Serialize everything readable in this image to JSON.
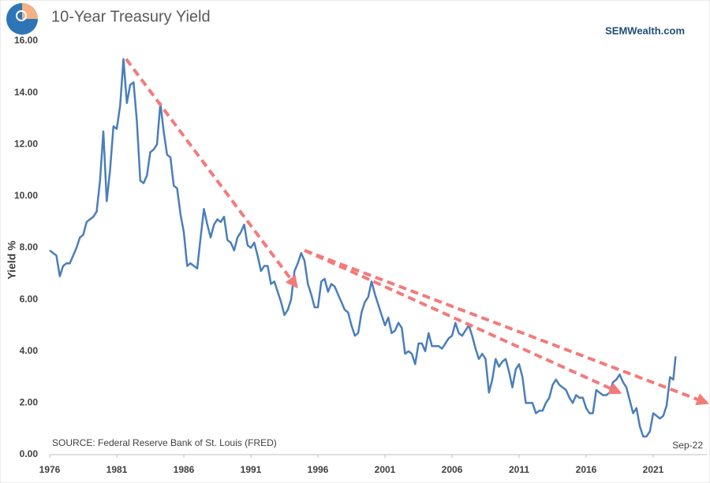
{
  "chart_data": {
    "type": "line",
    "title": "10-Year Treasury Yield",
    "brand": "SEMWealth.com",
    "source": "SOURCE:  Federal Reserve Bank of St. Louis (FRED)",
    "end_label": "Sep-22",
    "y_label": "Yield %",
    "xlim": [
      1976,
      2025
    ],
    "xticks": [
      1976,
      1981,
      1986,
      1991,
      1996,
      2001,
      2006,
      2011,
      2016,
      2021
    ],
    "ylim": [
      0,
      16
    ],
    "yticks": [
      {
        "value": 0,
        "label": "0.00"
      },
      {
        "value": 2,
        "label": "2.00"
      },
      {
        "value": 4,
        "label": "4.00"
      },
      {
        "value": 6,
        "label": "6.00"
      },
      {
        "value": 8,
        "label": "8.00"
      },
      {
        "value": 10,
        "label": "10.00"
      },
      {
        "value": 12,
        "label": "12.00"
      },
      {
        "value": 14,
        "label": "14.00"
      },
      {
        "value": 16,
        "label": "16.00"
      }
    ],
    "grid": false,
    "x": [
      1976,
      1976.25,
      1976.5,
      1976.75,
      1977,
      1977.25,
      1977.5,
      1977.75,
      1978,
      1978.25,
      1978.5,
      1978.75,
      1979,
      1979.25,
      1979.5,
      1979.75,
      1980,
      1980.25,
      1980.5,
      1980.75,
      1981,
      1981.25,
      1981.5,
      1981.75,
      1982,
      1982.25,
      1982.5,
      1982.75,
      1983,
      1983.25,
      1983.5,
      1983.75,
      1984,
      1984.25,
      1984.5,
      1984.75,
      1985,
      1985.25,
      1985.5,
      1985.75,
      1986,
      1986.25,
      1986.5,
      1986.75,
      1987,
      1987.25,
      1987.5,
      1987.75,
      1988,
      1988.25,
      1988.5,
      1988.75,
      1989,
      1989.25,
      1989.5,
      1989.75,
      1990,
      1990.25,
      1990.5,
      1990.75,
      1991,
      1991.25,
      1991.5,
      1991.75,
      1992,
      1992.25,
      1992.5,
      1992.75,
      1993,
      1993.25,
      1993.5,
      1993.75,
      1994,
      1994.25,
      1994.5,
      1994.75,
      1995,
      1995.25,
      1995.5,
      1995.75,
      1996,
      1996.25,
      1996.5,
      1996.75,
      1997,
      1997.25,
      1997.5,
      1997.75,
      1998,
      1998.25,
      1998.5,
      1998.75,
      1999,
      1999.25,
      1999.5,
      1999.75,
      2000,
      2000.25,
      2000.5,
      2000.75,
      2001,
      2001.25,
      2001.5,
      2001.75,
      2002,
      2002.25,
      2002.5,
      2002.75,
      2003,
      2003.25,
      2003.5,
      2003.75,
      2004,
      2004.25,
      2004.5,
      2004.75,
      2005,
      2005.25,
      2005.5,
      2005.75,
      2006,
      2006.25,
      2006.5,
      2006.75,
      2007,
      2007.25,
      2007.5,
      2007.75,
      2008,
      2008.25,
      2008.5,
      2008.75,
      2009,
      2009.25,
      2009.5,
      2009.75,
      2010,
      2010.25,
      2010.5,
      2010.75,
      2011,
      2011.25,
      2011.5,
      2011.75,
      2012,
      2012.25,
      2012.5,
      2012.75,
      2013,
      2013.25,
      2013.5,
      2013.75,
      2014,
      2014.25,
      2014.5,
      2014.75,
      2015,
      2015.25,
      2015.5,
      2015.75,
      2016,
      2016.25,
      2016.5,
      2016.75,
      2017,
      2017.25,
      2017.5,
      2017.75,
      2018,
      2018.25,
      2018.5,
      2018.75,
      2019,
      2019.25,
      2019.5,
      2019.75,
      2020,
      2020.25,
      2020.5,
      2020.75,
      2021,
      2021.25,
      2021.5,
      2021.75,
      2022,
      2022.25,
      2022.5,
      2022.67
    ],
    "series": [
      {
        "color": "#4a7ebb",
        "values": [
          7.9,
          7.8,
          7.7,
          6.9,
          7.3,
          7.4,
          7.4,
          7.7,
          8.0,
          8.4,
          8.5,
          9.0,
          9.1,
          9.2,
          9.4,
          10.6,
          12.5,
          9.8,
          11.0,
          12.7,
          12.6,
          13.5,
          15.3,
          13.6,
          14.3,
          14.4,
          12.9,
          10.6,
          10.5,
          10.8,
          11.7,
          11.8,
          12.0,
          13.6,
          12.5,
          11.6,
          11.5,
          10.4,
          10.3,
          9.3,
          8.6,
          7.3,
          7.4,
          7.3,
          7.2,
          8.4,
          9.5,
          8.9,
          8.4,
          8.9,
          9.1,
          9.0,
          9.2,
          8.3,
          8.2,
          7.9,
          8.4,
          8.6,
          8.9,
          8.1,
          8.0,
          8.2,
          7.7,
          7.1,
          7.3,
          7.3,
          6.6,
          6.7,
          6.3,
          5.9,
          5.4,
          5.6,
          6.0,
          7.1,
          7.4,
          7.8,
          7.5,
          6.6,
          6.2,
          5.7,
          5.7,
          6.7,
          6.8,
          6.3,
          6.6,
          6.5,
          6.2,
          5.9,
          5.6,
          5.5,
          5.0,
          4.6,
          4.7,
          5.5,
          5.9,
          6.1,
          6.7,
          6.2,
          5.8,
          5.4,
          5.0,
          5.3,
          4.7,
          4.8,
          5.1,
          4.9,
          3.9,
          4.0,
          3.9,
          3.5,
          4.3,
          4.3,
          4.0,
          4.7,
          4.2,
          4.2,
          4.2,
          4.1,
          4.3,
          4.5,
          4.6,
          5.1,
          4.7,
          4.6,
          4.8,
          5.0,
          4.6,
          4.1,
          3.7,
          3.9,
          3.7,
          2.4,
          2.9,
          3.7,
          3.4,
          3.6,
          3.7,
          3.2,
          2.6,
          3.3,
          3.5,
          3.0,
          2.0,
          2.0,
          2.0,
          1.6,
          1.7,
          1.7,
          2.0,
          2.2,
          2.7,
          2.9,
          2.7,
          2.6,
          2.5,
          2.2,
          2.0,
          2.3,
          2.2,
          2.2,
          1.8,
          1.6,
          1.6,
          2.5,
          2.4,
          2.3,
          2.3,
          2.4,
          2.8,
          2.9,
          3.1,
          2.8,
          2.6,
          2.1,
          1.6,
          1.8,
          1.1,
          0.7,
          0.7,
          0.9,
          1.6,
          1.5,
          1.4,
          1.5,
          1.9,
          3.0,
          2.9,
          3.8
        ]
      }
    ],
    "trend_lines": [
      {
        "color": "#f47a7a",
        "x": [
          1981.7,
          1994.4
        ],
        "y": [
          15.3,
          6.5
        ]
      },
      {
        "color": "#f47a7a",
        "x": [
          1995.0,
          2018.5
        ],
        "y": [
          7.9,
          2.4
        ]
      },
      {
        "color": "#f47a7a",
        "x": [
          1995.0,
          2025.0
        ],
        "y": [
          7.9,
          2.0
        ]
      }
    ]
  }
}
